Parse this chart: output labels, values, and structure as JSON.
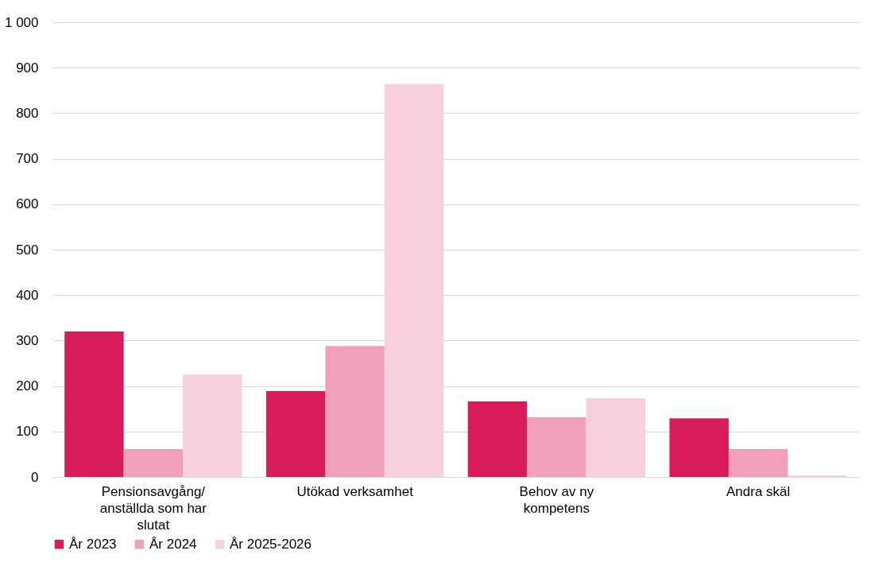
{
  "chart_data": {
    "type": "bar",
    "categories": [
      "Pensionsavgång/ anställda som har slutat",
      "Utökad verksamhet",
      "Behov av ny kompetens",
      "Andra skäl"
    ],
    "series": [
      {
        "name": "År 2023",
        "color": "#d81b5b",
        "values": [
          320,
          189,
          166,
          129
        ]
      },
      {
        "name": "År 2024",
        "color": "#f29fba",
        "values": [
          61,
          288,
          131,
          61
        ]
      },
      {
        "name": "År 2025-2026",
        "color": "#f8cfdd",
        "values": [
          225,
          864,
          173,
          3
        ]
      }
    ],
    "ylim": [
      0,
      1000
    ],
    "yticks": [
      0,
      100,
      200,
      300,
      400,
      500,
      600,
      700,
      800,
      900,
      {
        "value": 1000,
        "label": "1 000"
      }
    ],
    "grid": "y",
    "legend": "bottom"
  }
}
